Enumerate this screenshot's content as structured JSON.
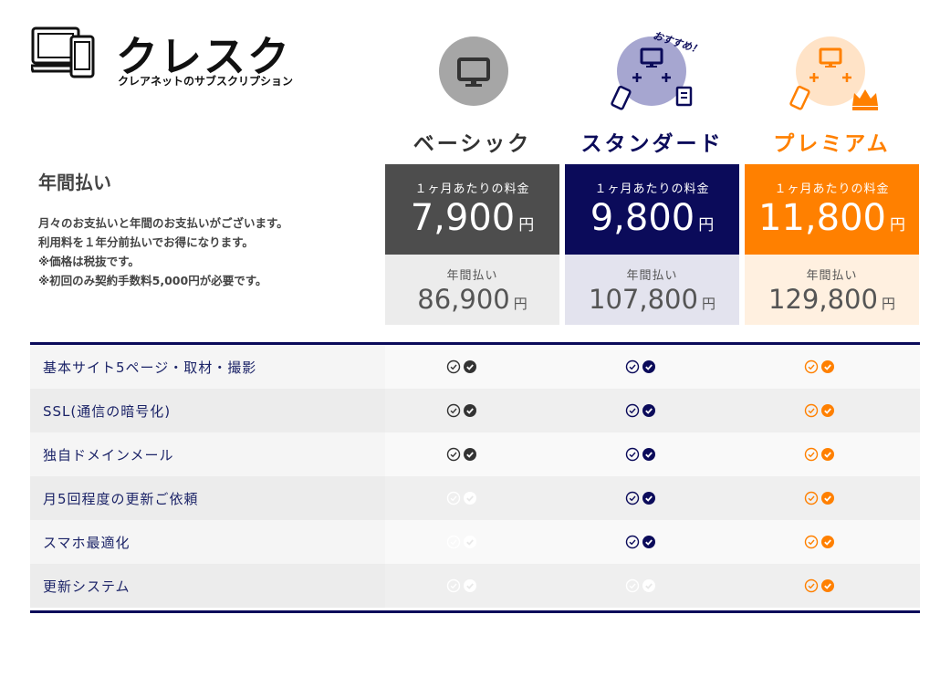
{
  "logo": {
    "title": "クレスク",
    "subtitle": "クレアネットのサブスクリプション"
  },
  "badge": "おすすめ！",
  "left": {
    "title": "年間払い",
    "notes": [
      "月々のお支払いと年間のお支払いがございます。",
      "利用料を１年分前払いでお得になります。",
      "※価格は税抜です。",
      "※初回のみ契約手数料5,000円が必要です。"
    ]
  },
  "plans": [
    {
      "name": "ベーシック",
      "monthly_label": "１ヶ月あたりの料金",
      "monthly_price": "7,900",
      "annual_label": "年間払い",
      "annual_price": "86,900",
      "yen": "円",
      "color": "#4d4d4d",
      "name_color": "#333333",
      "annual_bg": "#ececec"
    },
    {
      "name": "スタンダード",
      "monthly_label": "１ヶ月あたりの料金",
      "monthly_price": "9,800",
      "annual_label": "年間払い",
      "annual_price": "107,800",
      "yen": "円",
      "color": "#0b0b5a",
      "name_color": "#0b0b5a",
      "annual_bg": "#e3e3ee"
    },
    {
      "name": "プレミアム",
      "monthly_label": "１ヶ月あたりの料金",
      "monthly_price": "11,800",
      "annual_label": "年間払い",
      "annual_price": "129,800",
      "yen": "円",
      "color": "#ff8000",
      "name_color": "#ff8000",
      "annual_bg": "#fff0e0"
    }
  ],
  "features": [
    {
      "label": "基本サイト5ページ・取材・撮影",
      "included": [
        true,
        true,
        true
      ]
    },
    {
      "label": "SSL(通信の暗号化)",
      "included": [
        true,
        true,
        true
      ]
    },
    {
      "label": "独自ドメインメール",
      "included": [
        true,
        true,
        true
      ]
    },
    {
      "label": "月5回程度の更新ご依頼",
      "included": [
        false,
        true,
        true
      ]
    },
    {
      "label": "スマホ最適化",
      "included": [
        false,
        true,
        true
      ]
    },
    {
      "label": "更新システム",
      "included": [
        false,
        false,
        true
      ]
    }
  ]
}
